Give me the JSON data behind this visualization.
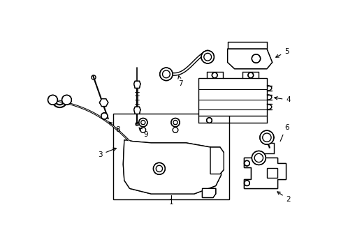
{
  "background_color": "#ffffff",
  "figsize": [
    4.89,
    3.6
  ],
  "dpi": 100,
  "lw": 1.0
}
